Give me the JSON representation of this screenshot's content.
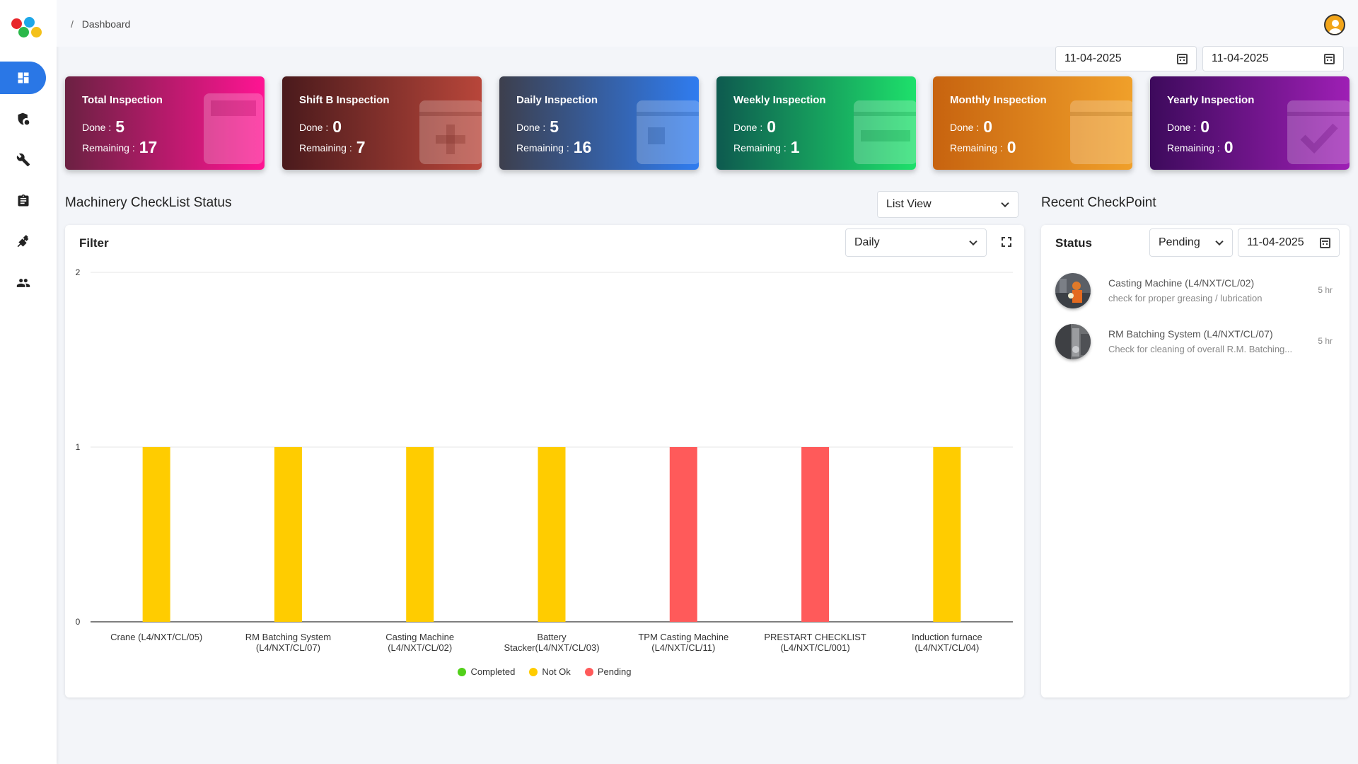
{
  "breadcrumb": {
    "separator": "/",
    "current": "Dashboard"
  },
  "dates": {
    "from": "11-04-2025",
    "to": "11-04-2025"
  },
  "cards": [
    {
      "title": "Total Inspection",
      "done_label": "Done :",
      "done": "5",
      "remaining_label": "Remaining :",
      "remaining": "17",
      "icon": "calculator-icon",
      "gradient": [
        "#6b2142",
        "#ff1493"
      ]
    },
    {
      "title": "Shift B Inspection",
      "done_label": "Done :",
      "done": "0",
      "remaining_label": "Remaining :",
      "remaining": "7",
      "icon": "calendar-plus-icon",
      "gradient": [
        "#4a1a1c",
        "#b8463a"
      ]
    },
    {
      "title": "Daily Inspection",
      "done_label": "Done :",
      "done": "5",
      "remaining_label": "Remaining :",
      "remaining": "16",
      "icon": "calendar-day-icon",
      "gradient": [
        "#3d3f4d",
        "#2f7cf0"
      ]
    },
    {
      "title": "Weekly Inspection",
      "done_label": "Done :",
      "done": "0",
      "remaining_label": "Remaining :",
      "remaining": "1",
      "icon": "calendar-week-icon",
      "gradient": [
        "#0e5a4f",
        "#1ee06b"
      ]
    },
    {
      "title": "Monthly Inspection",
      "done_label": "Done :",
      "done": "0",
      "remaining_label": "Remaining :",
      "remaining": "0",
      "icon": "calendar-month-icon",
      "gradient": [
        "#c7630f",
        "#f0a02a"
      ]
    },
    {
      "title": "Yearly Inspection",
      "done_label": "Done :",
      "done": "0",
      "remaining_label": "Remaining :",
      "remaining": "0",
      "icon": "calendar-check-icon",
      "gradient": [
        "#3d0a5c",
        "#9e1fb5"
      ]
    }
  ],
  "machinery": {
    "title": "Machinery CheckList Status",
    "view_select": "List View",
    "filter_label": "Filter",
    "period_select": "Daily"
  },
  "chart_data": {
    "type": "bar",
    "categories": [
      [
        "Crane (L4/NXT/CL/05)"
      ],
      [
        "RM Batching System",
        "(L4/NXT/CL/07)"
      ],
      [
        "Casting Machine",
        "(L4/NXT/CL/02)"
      ],
      [
        "Battery",
        "Stacker(L4/NXT/CL/03)"
      ],
      [
        "TPM Casting Machine",
        "(L4/NXT/CL/11)"
      ],
      [
        "PRESTART CHECKLIST",
        "(L4/NXT/CL/001)"
      ],
      [
        "Induction furnace",
        "(L4/NXT/CL/04)"
      ]
    ],
    "values": [
      1,
      1,
      1,
      1,
      1,
      1,
      1
    ],
    "statuses": [
      "Not Ok",
      "Not Ok",
      "Not Ok",
      "Not Ok",
      "Pending",
      "Pending",
      "Not Ok"
    ],
    "ylim": [
      0,
      2
    ],
    "yticks": [
      "0",
      "1",
      "2"
    ],
    "grid": true,
    "legend_position": "bottom",
    "legend": [
      {
        "name": "Completed",
        "color": "#52d01a"
      },
      {
        "name": "Not Ok",
        "color": "#ffcc00"
      },
      {
        "name": "Pending",
        "color": "#ff5a5a"
      }
    ]
  },
  "recent": {
    "title": "Recent CheckPoint",
    "status_label": "Status",
    "status_select": "Pending",
    "date": "11-04-2025",
    "items": [
      {
        "title": "Casting Machine (L4/NXT/CL/02)",
        "subtitle": "check for proper greasing / lubrication",
        "time": "5 hr"
      },
      {
        "title": "RM Batching System (L4/NXT/CL/07)",
        "subtitle": "Check for cleaning of overall R.M. Batching...",
        "time": "5 hr"
      }
    ]
  }
}
